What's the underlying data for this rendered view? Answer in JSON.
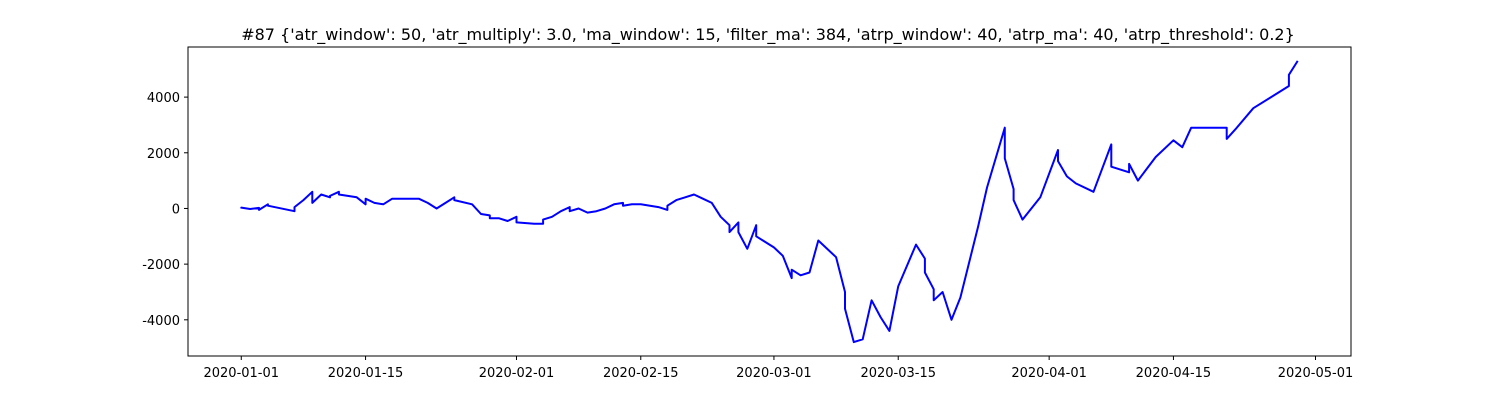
{
  "chart_data": {
    "type": "line",
    "title": "#87 {'atr_window': 50, 'atr_multiply': 3.0, 'ma_window': 15, 'filter_ma': 384, 'atrp_window': 40, 'atrp_ma': 40, 'atrp_threshold': 0.2}",
    "xlabel": "",
    "ylabel": "",
    "xlim": [
      "2019-12-26",
      "2020-05-05"
    ],
    "ylim": [
      -5300,
      5800
    ],
    "grid": false,
    "x_ticks": [
      "2020-01-01",
      "2020-01-15",
      "2020-02-01",
      "2020-02-15",
      "2020-03-01",
      "2020-03-15",
      "2020-04-01",
      "2020-04-15",
      "2020-05-01"
    ],
    "y_ticks": [
      -4000,
      -2000,
      0,
      2000,
      4000
    ],
    "series": [
      {
        "color": "#0000ff",
        "points": [
          [
            "2020-01-01",
            0
          ],
          [
            "2020-01-01",
            30
          ],
          [
            "2020-01-02",
            -20
          ],
          [
            "2020-01-03",
            20
          ],
          [
            "2020-01-03",
            -50
          ],
          [
            "2020-01-04",
            150
          ],
          [
            "2020-01-04",
            100
          ],
          [
            "2020-01-07",
            -100
          ],
          [
            "2020-01-07",
            50
          ],
          [
            "2020-01-08",
            300
          ],
          [
            "2020-01-09",
            600
          ],
          [
            "2020-01-09",
            200
          ],
          [
            "2020-01-10",
            500
          ],
          [
            "2020-01-11",
            400
          ],
          [
            "2020-01-11",
            450
          ],
          [
            "2020-01-12",
            600
          ],
          [
            "2020-01-12",
            500
          ],
          [
            "2020-01-14",
            400
          ],
          [
            "2020-01-15",
            150
          ],
          [
            "2020-01-15",
            350
          ],
          [
            "2020-01-16",
            200
          ],
          [
            "2020-01-17",
            150
          ],
          [
            "2020-01-18",
            350
          ],
          [
            "2020-01-20",
            350
          ],
          [
            "2020-01-21",
            350
          ],
          [
            "2020-01-22",
            200
          ],
          [
            "2020-01-23",
            0
          ],
          [
            "2020-01-24",
            200
          ],
          [
            "2020-01-25",
            400
          ],
          [
            "2020-01-25",
            300
          ],
          [
            "2020-01-27",
            150
          ],
          [
            "2020-01-28",
            -200
          ],
          [
            "2020-01-29",
            -250
          ],
          [
            "2020-01-29",
            -350
          ],
          [
            "2020-01-30",
            -350
          ],
          [
            "2020-01-31",
            -450
          ],
          [
            "2020-02-01",
            -300
          ],
          [
            "2020-02-01",
            -500
          ],
          [
            "2020-02-03",
            -550
          ],
          [
            "2020-02-04",
            -550
          ],
          [
            "2020-02-04",
            -400
          ],
          [
            "2020-02-05",
            -300
          ],
          [
            "2020-02-06",
            -100
          ],
          [
            "2020-02-07",
            50
          ],
          [
            "2020-02-07",
            -100
          ],
          [
            "2020-02-08",
            0
          ],
          [
            "2020-02-09",
            -150
          ],
          [
            "2020-02-10",
            -100
          ],
          [
            "2020-02-11",
            0
          ],
          [
            "2020-02-12",
            150
          ],
          [
            "2020-02-13",
            200
          ],
          [
            "2020-02-13",
            100
          ],
          [
            "2020-02-14",
            150
          ],
          [
            "2020-02-15",
            150
          ],
          [
            "2020-02-17",
            50
          ],
          [
            "2020-02-18",
            -50
          ],
          [
            "2020-02-18",
            100
          ],
          [
            "2020-02-19",
            300
          ],
          [
            "2020-02-20",
            400
          ],
          [
            "2020-02-21",
            500
          ],
          [
            "2020-02-22",
            350
          ],
          [
            "2020-02-23",
            200
          ],
          [
            "2020-02-24",
            -300
          ],
          [
            "2020-02-25",
            -600
          ],
          [
            "2020-02-25",
            -850
          ],
          [
            "2020-02-26",
            -500
          ],
          [
            "2020-02-26",
            -850
          ],
          [
            "2020-02-27",
            -1450
          ],
          [
            "2020-02-28",
            -600
          ],
          [
            "2020-02-28",
            -1000
          ],
          [
            "2020-02-29",
            -1200
          ],
          [
            "2020-03-01",
            -1400
          ],
          [
            "2020-03-02",
            -1700
          ],
          [
            "2020-03-03",
            -2500
          ],
          [
            "2020-03-03",
            -2200
          ],
          [
            "2020-03-04",
            -2400
          ],
          [
            "2020-03-05",
            -2300
          ],
          [
            "2020-03-06",
            -1150
          ],
          [
            "2020-03-08",
            -1750
          ],
          [
            "2020-03-09",
            -3000
          ],
          [
            "2020-03-09",
            -3600
          ],
          [
            "2020-03-10",
            -4800
          ],
          [
            "2020-03-11",
            -4700
          ],
          [
            "2020-03-12",
            -3300
          ],
          [
            "2020-03-13",
            -3900
          ],
          [
            "2020-03-14",
            -4400
          ],
          [
            "2020-03-15",
            -2800
          ],
          [
            "2020-03-17",
            -1300
          ],
          [
            "2020-03-18",
            -1800
          ],
          [
            "2020-03-18",
            -2300
          ],
          [
            "2020-03-19",
            -2900
          ],
          [
            "2020-03-19",
            -3300
          ],
          [
            "2020-03-20",
            -3000
          ],
          [
            "2020-03-21",
            -4000
          ],
          [
            "2020-03-22",
            -3200
          ],
          [
            "2020-03-24",
            -650
          ],
          [
            "2020-03-25",
            750
          ],
          [
            "2020-03-27",
            2900
          ],
          [
            "2020-03-27",
            1800
          ],
          [
            "2020-03-28",
            700
          ],
          [
            "2020-03-28",
            300
          ],
          [
            "2020-03-29",
            -400
          ],
          [
            "2020-03-31",
            400
          ],
          [
            "2020-04-02",
            2100
          ],
          [
            "2020-04-02",
            1700
          ],
          [
            "2020-04-03",
            1150
          ],
          [
            "2020-04-04",
            900
          ],
          [
            "2020-04-06",
            600
          ],
          [
            "2020-04-08",
            2300
          ],
          [
            "2020-04-08",
            1500
          ],
          [
            "2020-04-10",
            1300
          ],
          [
            "2020-04-10",
            1600
          ],
          [
            "2020-04-11",
            1000
          ],
          [
            "2020-04-13",
            1850
          ],
          [
            "2020-04-15",
            2450
          ],
          [
            "2020-04-16",
            2200
          ],
          [
            "2020-04-17",
            2900
          ],
          [
            "2020-04-18",
            2900
          ],
          [
            "2020-04-21",
            2900
          ],
          [
            "2020-04-21",
            2500
          ],
          [
            "2020-04-22",
            2850
          ],
          [
            "2020-04-24",
            3600
          ],
          [
            "2020-04-28",
            4400
          ],
          [
            "2020-04-28",
            4800
          ],
          [
            "2020-04-29",
            5300
          ]
        ]
      }
    ]
  }
}
